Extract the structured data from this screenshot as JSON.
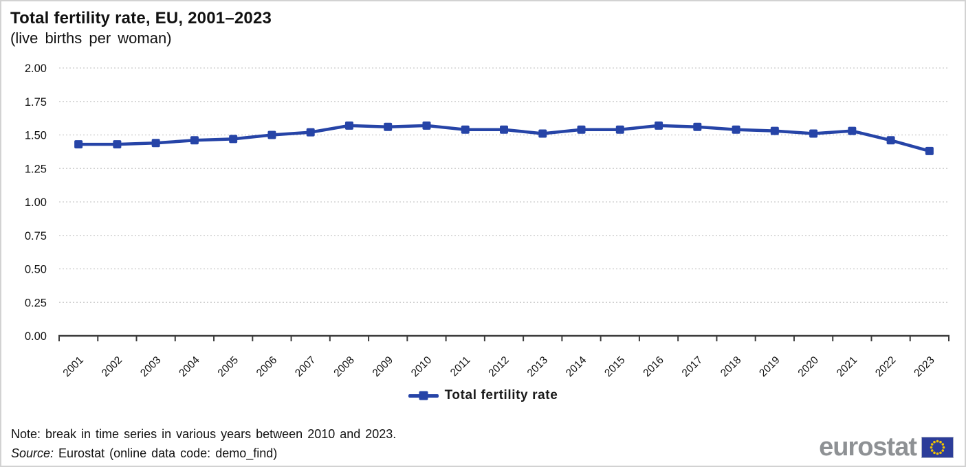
{
  "header": {
    "title": "Total fertility rate, EU, 2001–2023",
    "subtitle": "(live births per woman)"
  },
  "chart_data": {
    "type": "line",
    "title": "Total fertility rate, EU, 2001–2023",
    "subtitle": "(live births per woman)",
    "categories": [
      "2001",
      "2002",
      "2003",
      "2004",
      "2005",
      "2006",
      "2007",
      "2008",
      "2009",
      "2010",
      "2011",
      "2012",
      "2013",
      "2014",
      "2015",
      "2016",
      "2017",
      "2018",
      "2019",
      "2020",
      "2021",
      "2022",
      "2023"
    ],
    "series": [
      {
        "name": "Total fertility rate",
        "values": [
          1.43,
          1.43,
          1.44,
          1.46,
          1.47,
          1.5,
          1.52,
          1.57,
          1.56,
          1.57,
          1.54,
          1.54,
          1.51,
          1.54,
          1.54,
          1.57,
          1.56,
          1.54,
          1.53,
          1.51,
          1.53,
          1.46,
          1.38
        ]
      }
    ],
    "xlabel": "",
    "ylabel": "",
    "ylim": [
      0,
      2.0
    ],
    "ytick_step": 0.25,
    "ytick_labels": [
      "0.00",
      "0.25",
      "0.50",
      "0.75",
      "1.00",
      "1.25",
      "1.50",
      "1.75",
      "2.00"
    ],
    "grid": true,
    "gridline_style": "dotted",
    "legend_position": "bottom",
    "marker": "square"
  },
  "legend": {
    "label": "Total fertility rate"
  },
  "footer": {
    "note": "Note: break in time series in various years between 2010 and 2023.",
    "source_prefix": "Source:",
    "source_text": " Eurostat (online data code: demo_find)"
  },
  "logo": {
    "text": "eurostat"
  },
  "colors": {
    "line": "#2644a7",
    "gridline": "#c9c9c9",
    "axis": "#3c3c3c",
    "text": "#111111",
    "logo_gray": "#8e9194",
    "flag_blue": "#2c3d99",
    "flag_star": "#f3c500"
  }
}
